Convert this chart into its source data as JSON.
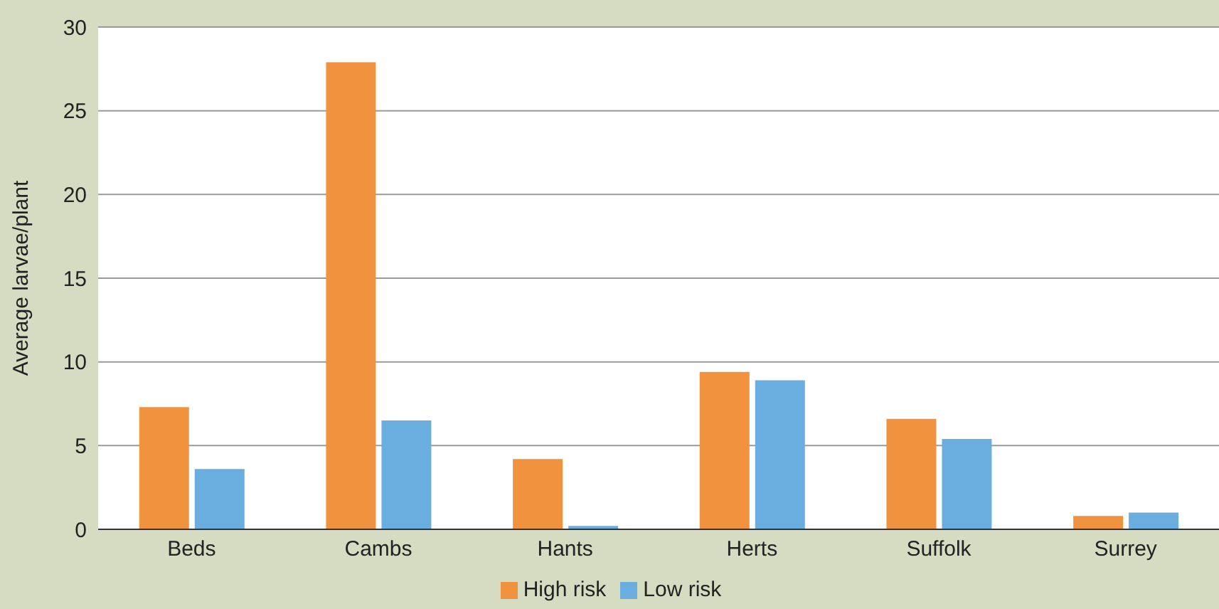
{
  "chart_data": {
    "type": "bar",
    "ylabel": "Average larvae/plant",
    "categories": [
      "Beds",
      "Cambs",
      "Hants",
      "Herts",
      "Suffolk",
      "Surrey"
    ],
    "series": [
      {
        "name": "High risk",
        "color": "#f0923e",
        "values": [
          7.3,
          27.9,
          4.2,
          9.4,
          6.6,
          0.8
        ]
      },
      {
        "name": "Low risk",
        "color": "#6aaddf",
        "values": [
          3.6,
          6.5,
          0.2,
          8.9,
          5.4,
          1.0
        ]
      }
    ],
    "ylim": [
      0,
      30
    ],
    "yticks": [
      0,
      5,
      10,
      15,
      20,
      25,
      30
    ],
    "grid": "y",
    "legend": "bottom"
  }
}
